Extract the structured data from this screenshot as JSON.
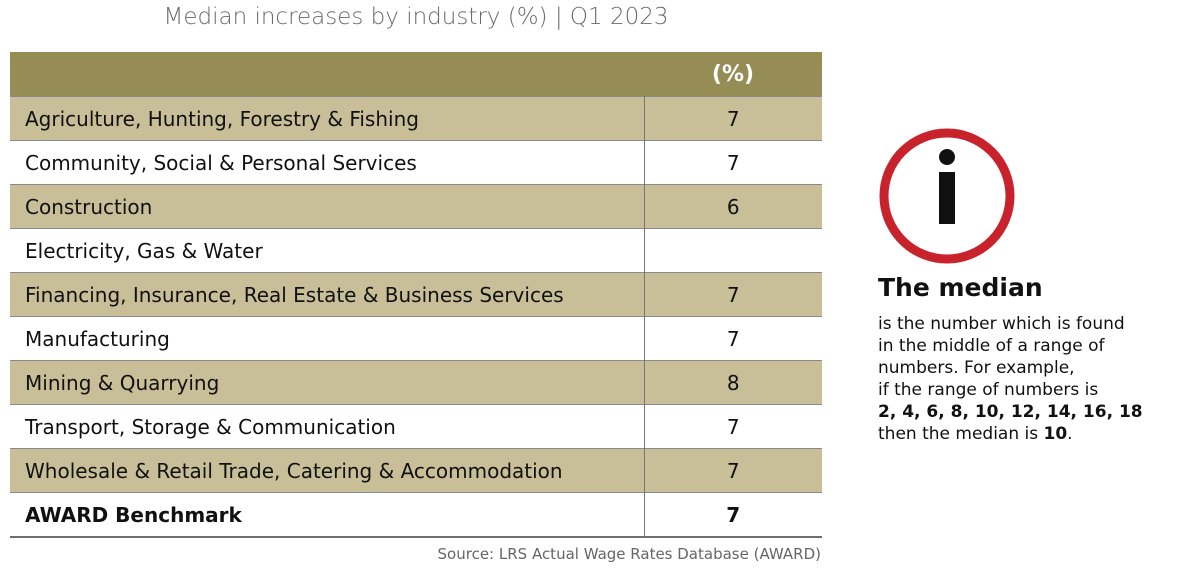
{
  "title": "Median increases by industry (%) | Q1 2023",
  "table": {
    "header": {
      "name": "",
      "value": "(%)"
    },
    "rows": [
      {
        "name": "Agriculture, Hunting, Forestry & Fishing",
        "value": "7"
      },
      {
        "name": "Community, Social & Personal Services",
        "value": "7"
      },
      {
        "name": "Construction",
        "value": "6"
      },
      {
        "name": "Electricity, Gas & Water",
        "value": ""
      },
      {
        "name": "Financing, Insurance, Real Estate & Business Services",
        "value": "7"
      },
      {
        "name": "Manufacturing",
        "value": "7"
      },
      {
        "name": "Mining & Quarrying",
        "value": "8"
      },
      {
        "name": "Transport, Storage & Communication",
        "value": "7"
      },
      {
        "name": "Wholesale & Retail Trade, Catering & Accommodation",
        "value": "7"
      }
    ],
    "benchmark": {
      "name": "AWARD Benchmark",
      "value": "7"
    }
  },
  "source": "Source: LRS Actual Wage Rates Database (AWARD)",
  "info": {
    "icon": "info-icon",
    "heading": "The median",
    "line1": "is the number which is found",
    "line2": "in the middle of a range of",
    "line3": "numbers. For example,",
    "line4": "if the range of numbers is",
    "sequence": "2, 4, 6, 8, 10, 12, 14, 16, 18",
    "median_prefix": "then the median is ",
    "median_value": "10",
    "median_suffix": "."
  },
  "colors": {
    "header_bg": "#958c56",
    "shaded_row": "#c8be97",
    "icon_ring": "#c8232c"
  },
  "chart_data": {
    "type": "table",
    "title": "Median increases by industry (%) | Q1 2023",
    "columns": [
      "",
      "(%)"
    ],
    "categories": [
      "Agriculture, Hunting, Forestry & Fishing",
      "Community, Social & Personal Services",
      "Construction",
      "Electricity, Gas & Water",
      "Financing, Insurance, Real Estate & Business Services",
      "Manufacturing",
      "Mining & Quarrying",
      "Transport, Storage & Communication",
      "Wholesale & Retail Trade, Catering & Accommodation",
      "AWARD Benchmark"
    ],
    "values": [
      7,
      7,
      6,
      null,
      7,
      7,
      8,
      7,
      7,
      7
    ]
  }
}
